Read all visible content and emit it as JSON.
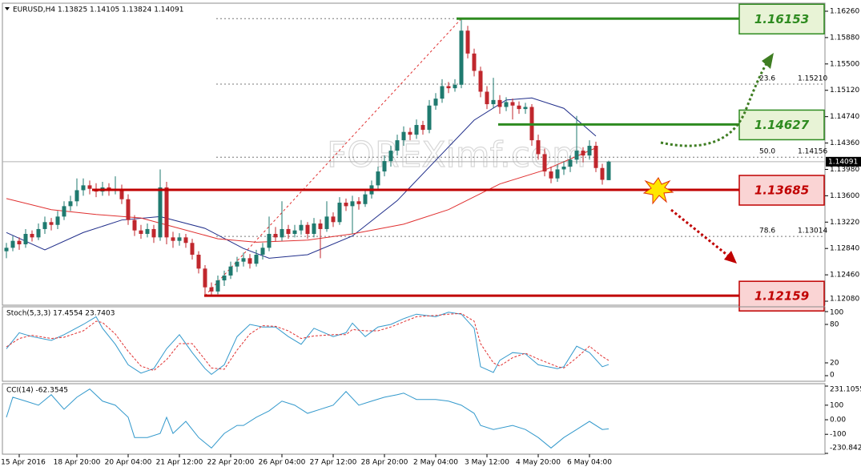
{
  "chart_data": [
    {
      "type": "candlestick",
      "title": "EURUSD,H4  1.13825 1.14105 1.13824 1.14091",
      "watermark": "FOREXimf.com",
      "up_color": "#1f7a6f",
      "down_color": "#c0272d",
      "candles": [
        [
          1.128,
          1.1292,
          1.127,
          1.1285
        ],
        [
          1.1285,
          1.1302,
          1.128,
          1.1295
        ],
        [
          1.1295,
          1.13,
          1.1282,
          1.129
        ],
        [
          1.129,
          1.1312,
          1.1285,
          1.1305
        ],
        [
          1.1305,
          1.131,
          1.1294,
          1.13
        ],
        [
          1.13,
          1.132,
          1.1296,
          1.1312
        ],
        [
          1.1312,
          1.133,
          1.1305,
          1.1322
        ],
        [
          1.1322,
          1.1328,
          1.131,
          1.1318
        ],
        [
          1.1318,
          1.1338,
          1.1312,
          1.133
        ],
        [
          1.133,
          1.1352,
          1.1325,
          1.1345
        ],
        [
          1.1345,
          1.136,
          1.1338,
          1.1352
        ],
        [
          1.1352,
          1.1385,
          1.1345,
          1.1368
        ],
        [
          1.1368,
          1.1385,
          1.136,
          1.1375
        ],
        [
          1.1375,
          1.1382,
          1.1362,
          1.137
        ],
        [
          1.137,
          1.1378,
          1.1358,
          1.1366
        ],
        [
          1.1366,
          1.138,
          1.136,
          1.1372
        ],
        [
          1.1372,
          1.1378,
          1.136,
          1.1368
        ],
        [
          1.1368,
          1.1388,
          1.1362,
          1.137
        ],
        [
          1.137,
          1.1376,
          1.1348,
          1.1355
        ],
        [
          1.1355,
          1.1362,
          1.1318,
          1.1325
        ],
        [
          1.1325,
          1.1332,
          1.1302,
          1.131
        ],
        [
          1.131,
          1.1318,
          1.1298,
          1.1305
        ],
        [
          1.1305,
          1.132,
          1.13,
          1.1312
        ],
        [
          1.1312,
          1.1318,
          1.1292,
          1.13
        ],
        [
          1.13,
          1.1398,
          1.1295,
          1.1372
        ],
        [
          1.1372,
          1.138,
          1.129,
          1.13
        ],
        [
          1.13,
          1.1308,
          1.1285,
          1.1295
        ],
        [
          1.1295,
          1.1306,
          1.1288,
          1.13
        ],
        [
          1.13,
          1.1305,
          1.1285,
          1.1292
        ],
        [
          1.1292,
          1.1298,
          1.1268,
          1.1275
        ],
        [
          1.1275,
          1.128,
          1.1248,
          1.1255
        ],
        [
          1.1255,
          1.126,
          1.1216,
          1.1228
        ],
        [
          1.1228,
          1.1235,
          1.1216,
          1.1222
        ],
        [
          1.1222,
          1.1245,
          1.1218,
          1.1238
        ],
        [
          1.1238,
          1.1252,
          1.123,
          1.1245
        ],
        [
          1.1245,
          1.1265,
          1.124,
          1.1258
        ],
        [
          1.1258,
          1.1272,
          1.125,
          1.1265
        ],
        [
          1.1265,
          1.1278,
          1.1258,
          1.127
        ],
        [
          1.127,
          1.1276,
          1.1255,
          1.1262
        ],
        [
          1.1262,
          1.1282,
          1.1258,
          1.1275
        ],
        [
          1.1275,
          1.1292,
          1.1268,
          1.1285
        ],
        [
          1.1285,
          1.133,
          1.128,
          1.1305
        ],
        [
          1.1305,
          1.1315,
          1.1294,
          1.13
        ],
        [
          1.13,
          1.1352,
          1.1295,
          1.1312
        ],
        [
          1.1312,
          1.1318,
          1.1298,
          1.1305
        ],
        [
          1.1305,
          1.1318,
          1.13,
          1.131
        ],
        [
          1.131,
          1.1325,
          1.1304,
          1.1318
        ],
        [
          1.1318,
          1.1322,
          1.1298,
          1.1305
        ],
        [
          1.1305,
          1.1328,
          1.13,
          1.132
        ],
        [
          1.132,
          1.1326,
          1.127,
          1.1312
        ],
        [
          1.1312,
          1.1352,
          1.1308,
          1.133
        ],
        [
          1.133,
          1.1336,
          1.1315,
          1.1322
        ],
        [
          1.1322,
          1.1358,
          1.1318,
          1.135
        ],
        [
          1.135,
          1.1356,
          1.1338,
          1.1345
        ],
        [
          1.1345,
          1.136,
          1.1305,
          1.1352
        ],
        [
          1.1352,
          1.1358,
          1.134,
          1.1348
        ],
        [
          1.1348,
          1.137,
          1.1344,
          1.1362
        ],
        [
          1.1362,
          1.1382,
          1.1356,
          1.1375
        ],
        [
          1.1375,
          1.1402,
          1.137,
          1.1395
        ],
        [
          1.1395,
          1.1418,
          1.1388,
          1.141
        ],
        [
          1.141,
          1.1432,
          1.1402,
          1.1425
        ],
        [
          1.1425,
          1.1448,
          1.1418,
          1.144
        ],
        [
          1.144,
          1.146,
          1.1432,
          1.1452
        ],
        [
          1.1452,
          1.1458,
          1.144,
          1.1448
        ],
        [
          1.1448,
          1.147,
          1.1442,
          1.1462
        ],
        [
          1.1462,
          1.1468,
          1.1448,
          1.1455
        ],
        [
          1.1455,
          1.1498,
          1.145,
          1.149
        ],
        [
          1.149,
          1.1508,
          1.1484,
          1.15
        ],
        [
          1.15,
          1.1528,
          1.1494,
          1.1518
        ],
        [
          1.1518,
          1.1524,
          1.1508,
          1.1515
        ],
        [
          1.1515,
          1.1528,
          1.151,
          1.152
        ],
        [
          1.152,
          1.1615,
          1.1515,
          1.1598
        ],
        [
          1.1598,
          1.1605,
          1.1558,
          1.1565
        ],
        [
          1.1565,
          1.1572,
          1.1532,
          1.154
        ],
        [
          1.154,
          1.1546,
          1.1502,
          1.151
        ],
        [
          1.151,
          1.1518,
          1.1485,
          1.1492
        ],
        [
          1.1492,
          1.153,
          1.1486,
          1.1498
        ],
        [
          1.1498,
          1.1505,
          1.1478,
          1.1488
        ],
        [
          1.1488,
          1.1502,
          1.1482,
          1.1495
        ],
        [
          1.1495,
          1.15,
          1.147,
          1.149
        ],
        [
          1.149,
          1.1496,
          1.1478,
          1.1485
        ],
        [
          1.1485,
          1.1494,
          1.1478,
          1.1488
        ],
        [
          1.1488,
          1.1492,
          1.1432,
          1.144
        ],
        [
          1.144,
          1.1448,
          1.1412,
          1.142
        ],
        [
          1.142,
          1.1428,
          1.1388,
          1.1395
        ],
        [
          1.1395,
          1.1402,
          1.1378,
          1.1385
        ],
        [
          1.1385,
          1.1405,
          1.138,
          1.1398
        ],
        [
          1.1398,
          1.141,
          1.139,
          1.1402
        ],
        [
          1.1402,
          1.1418,
          1.1394,
          1.1412
        ],
        [
          1.1412,
          1.1475,
          1.1406,
          1.1425
        ],
        [
          1.1425,
          1.143,
          1.1408,
          1.1418
        ],
        [
          1.1418,
          1.144,
          1.1412,
          1.1432
        ],
        [
          1.1432,
          1.1438,
          1.1394,
          1.14
        ],
        [
          1.14,
          1.1406,
          1.1376,
          1.1383
        ],
        [
          1.13825,
          1.14105,
          1.13824,
          1.14091
        ]
      ],
      "ma": [
        {
          "color": "#1f2d8a",
          "x": [
            0,
            6,
            12,
            18,
            24,
            31,
            37,
            41,
            47,
            54,
            61,
            67,
            73,
            78,
            82,
            87,
            92
          ],
          "values": [
            1.1307,
            1.1282,
            1.1307,
            1.1325,
            1.133,
            1.1313,
            1.1284,
            1.127,
            1.1275,
            1.1302,
            1.1353,
            1.1411,
            1.1469,
            1.1498,
            1.1501,
            1.1486,
            1.1446
          ]
        },
        {
          "color": "#e03030",
          "x": [
            0,
            7,
            14,
            21,
            27,
            33,
            39,
            47,
            54,
            62,
            69,
            77,
            84,
            92
          ],
          "values": [
            1.1356,
            1.134,
            1.1333,
            1.1328,
            1.1313,
            1.1298,
            1.1293,
            1.1296,
            1.1305,
            1.1319,
            1.134,
            1.1377,
            1.1397,
            1.1429
          ]
        }
      ],
      "levels": [
        {
          "value": 1.16153,
          "color": "#2e8b20",
          "fill": "#e8f3d6"
        },
        {
          "value": 1.14627,
          "color": "#2e8b20",
          "fill": "#e8f3d6"
        },
        {
          "value": 1.13685,
          "color": "#c00000",
          "fill": "#fad4d4"
        },
        {
          "value": 1.12159,
          "color": "#c00000",
          "fill": "#fad4d4"
        }
      ],
      "fibonacci": [
        {
          "level": 23.6,
          "price": {
            "value": 1.1521,
            "label": "1.15210"
          }
        },
        {
          "level": "50.0",
          "price": 1.14156
        },
        {
          "level": 78.6,
          "price": 1.13014
        }
      ],
      "last_price": 1.14091,
      "ylim": [
        1.12034,
        1.16364
      ],
      "yticks": [
        {
          "value": 1.1626,
          "label": "1.16260"
        },
        {
          "value": 1.1588,
          "label": "1.15880"
        },
        {
          "value": 1.155,
          "label": "1.15500"
        },
        {
          "value": 1.1512,
          "label": "1.15120"
        },
        {
          "value": 1.1474,
          "label": "1.14740"
        },
        {
          "value": 1.1436,
          "label": "1.14360"
        },
        {
          "value": 1.1398,
          "label": "1.13980"
        },
        {
          "value": 1.136,
          "label": "1.13600"
        },
        {
          "value": 1.1322,
          "label": "1.13220"
        },
        {
          "value": 1.1284,
          "label": "1.12840"
        },
        {
          "value": 1.1246,
          "label": "1.12460"
        },
        {
          "value": 1.1208,
          "label": "1.12080"
        }
      ]
    },
    {
      "type": "line",
      "title": "Stoch(5,3,3) 17.4554 23.7403",
      "x": [
        0,
        2,
        4,
        7,
        9,
        12,
        14,
        15,
        17,
        19,
        21,
        23,
        25,
        27,
        29,
        31,
        32,
        34,
        36,
        38,
        40,
        42,
        44,
        46,
        48,
        51,
        53,
        54,
        56,
        58,
        60,
        62,
        64,
        67,
        69,
        71,
        73,
        74,
        76,
        77,
        79,
        81,
        83,
        86,
        87,
        89,
        91,
        93,
        94
      ],
      "series": [
        {
          "color": "#3399cc",
          "dashed": false,
          "values": [
            42,
            67,
            61,
            55,
            64,
            80,
            92,
            74,
            49,
            17,
            4,
            11,
            42,
            64,
            36,
            11,
            2,
            17,
            61,
            80,
            76,
            76,
            61,
            49,
            74,
            61,
            67,
            82,
            61,
            76,
            80,
            89,
            96,
            92,
            99,
            96,
            74,
            14,
            5,
            24,
            36,
            34,
            17,
            11,
            14,
            46,
            36,
            14,
            17.4554
          ]
        },
        {
          "color": "#e03030",
          "dashed": true,
          "values": [
            45,
            58,
            63,
            58,
            60,
            70,
            85,
            83,
            65,
            38,
            15,
            8,
            25,
            50,
            50,
            25,
            12,
            10,
            40,
            65,
            78,
            77,
            70,
            58,
            62,
            64,
            64,
            72,
            70,
            70,
            76,
            84,
            92,
            94,
            96,
            97,
            85,
            50,
            20,
            15,
            28,
            35,
            26,
            14,
            12,
            28,
            46,
            30,
            23.7403
          ]
        }
      ],
      "ylim": [
        0,
        100
      ],
      "yticks": [
        0,
        20,
        80,
        100
      ]
    },
    {
      "type": "line",
      "title": "CCI(14) -62.3545",
      "x": [
        0,
        1,
        3,
        5,
        7,
        9,
        11,
        13,
        15,
        17,
        19,
        20,
        22,
        24,
        25,
        26,
        28,
        30,
        32,
        34,
        36,
        37,
        39,
        41,
        43,
        45,
        47,
        49,
        51,
        53,
        55,
        57,
        59,
        61,
        62,
        64,
        67,
        69,
        71,
        73,
        74,
        76,
        79,
        81,
        83,
        85,
        87,
        89,
        91,
        93,
        94
      ],
      "series": [
        {
          "color": "#3399cc",
          "dashed": false,
          "values": [
            17,
            155,
            128,
            100,
            172,
            72,
            155,
            211,
            128,
            100,
            17,
            -122,
            -122,
            -94,
            17,
            -94,
            -11,
            -122,
            -194,
            -94,
            -39,
            -39,
            17,
            61,
            128,
            100,
            44,
            72,
            100,
            194,
            100,
            128,
            155,
            172,
            183,
            139,
            139,
            128,
            100,
            44,
            -39,
            -67,
            -39,
            -67,
            -122,
            -194,
            -122,
            -67,
            -11,
            -67,
            -62.3545
          ]
        }
      ],
      "ylim": [
        -230.8422,
        231.1055
      ],
      "yticks": [
        231.1055,
        100,
        {
          "value": 0,
          "label": "0.00"
        },
        -100,
        -230.8422
      ],
      "xticks": [
        {
          "value": 2,
          "label": "15 Apr 2016"
        },
        {
          "value": 11,
          "label": "18 Apr 20:00"
        },
        {
          "value": 19,
          "label": "20 Apr 04:00"
        },
        {
          "value": 27,
          "label": "21 Apr 12:00"
        },
        {
          "value": 35,
          "label": "22 Apr 20:00"
        },
        {
          "value": 43,
          "label": "26 Apr 04:00"
        },
        {
          "value": 51,
          "label": "27 Apr 12:00"
        },
        {
          "value": 59,
          "label": "28 Apr 20:00"
        },
        {
          "value": 67,
          "label": "2 May 04:00"
        },
        {
          "value": 75,
          "label": "3 May 12:00"
        },
        {
          "value": 83,
          "label": "4 May 20:00"
        },
        {
          "value": 91,
          "label": "6 May 04:00"
        }
      ]
    }
  ]
}
